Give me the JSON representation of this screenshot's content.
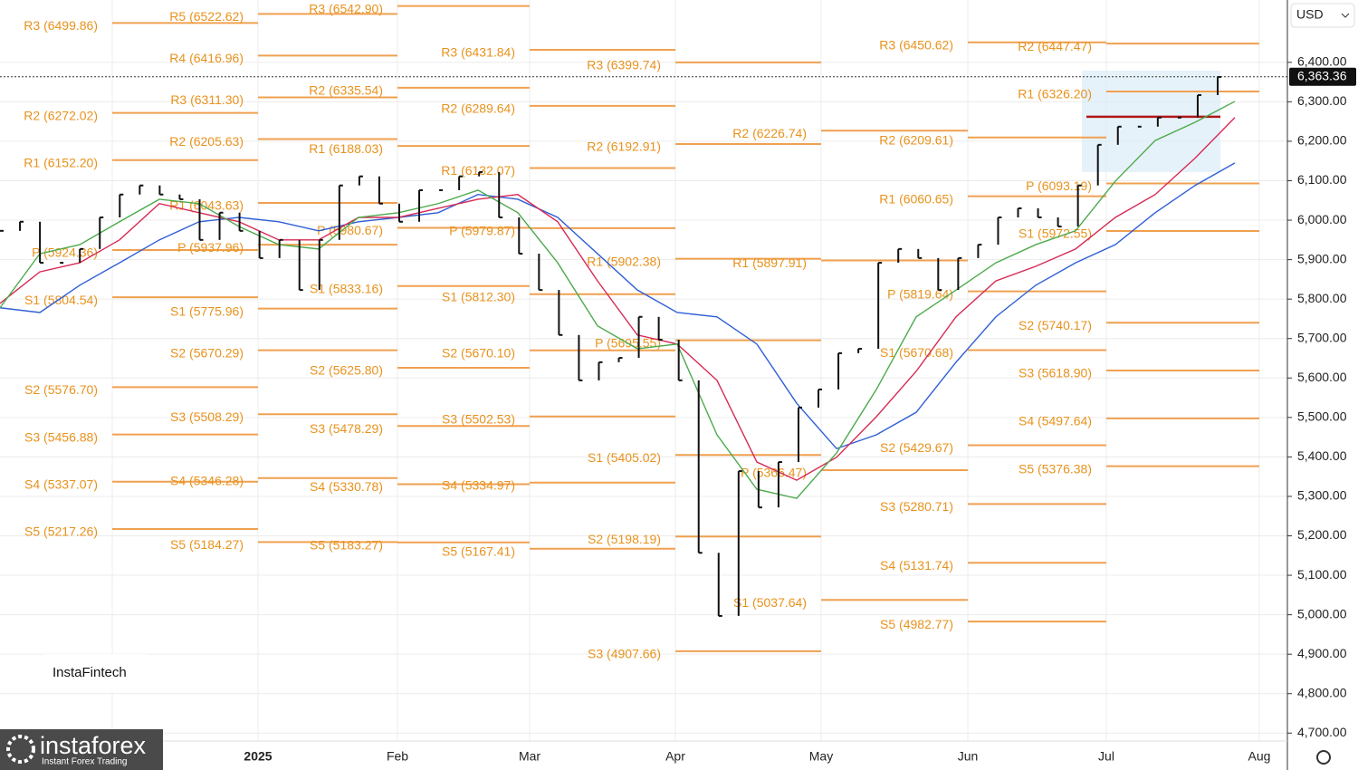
{
  "chart_data": {
    "type": "price-bars",
    "currency": "USD",
    "last_price": {
      "value": 6363.36,
      "label": "6,363.36"
    },
    "ylim": [
      4680,
      6558
    ],
    "yticks": [
      {
        "value": 4700,
        "label": "4,700.00"
      },
      {
        "value": 4800,
        "label": "4,800.00"
      },
      {
        "value": 4900,
        "label": "4,900.00"
      },
      {
        "value": 5000,
        "label": "5,000.00"
      },
      {
        "value": 5100,
        "label": "5,100.00"
      },
      {
        "value": 5200,
        "label": "5,200.00"
      },
      {
        "value": 5300,
        "label": "5,300.00"
      },
      {
        "value": 5400,
        "label": "5,400.00"
      },
      {
        "value": 5500,
        "label": "5,500.00"
      },
      {
        "value": 5600,
        "label": "5,600.00"
      },
      {
        "value": 5700,
        "label": "5,700.00"
      },
      {
        "value": 5800,
        "label": "5,800.00"
      },
      {
        "value": 5900,
        "label": "5,900.00"
      },
      {
        "value": 6000,
        "label": "6,000.00"
      },
      {
        "value": 6100,
        "label": "6,100.00"
      },
      {
        "value": 6200,
        "label": "6,200.00"
      },
      {
        "value": 6300,
        "label": "6,300.00"
      },
      {
        "value": 6400,
        "label": "6,400.00"
      }
    ],
    "x_labels": [
      "2025",
      "Feb",
      "Mar",
      "Apr",
      "May",
      "Jun",
      "Jul",
      "Aug"
    ],
    "grid": true,
    "price": {
      "color": "#111111",
      "values": [
        5973,
        5996,
        5892,
        5892,
        5927,
        6007,
        6065,
        6088,
        6065,
        6053,
        5950,
        6019,
        5973,
        5904,
        5950,
        5823,
        5950,
        6088,
        6111,
        6042,
        5996,
        6076,
        6076,
        6111,
        6122,
        6007,
        5915,
        5823,
        5709,
        5594,
        5640,
        5651,
        5755,
        5697,
        5594,
        5157,
        4997,
        5364,
        5272,
        5387,
        5525,
        5571,
        5663,
        5674,
        5892,
        5927,
        5904,
        5823,
        5904,
        5938,
        6007,
        6030,
        6007,
        5984,
        6088,
        6191,
        6237,
        6237,
        6260,
        6260,
        6317,
        6363
      ]
    },
    "series": [
      {
        "color": "#2f5fd6",
        "values": [
          5778,
          5766,
          5835,
          5892,
          5950,
          5996,
          6007,
          5996,
          5973,
          5996,
          6007,
          6019,
          6065,
          6053,
          6007,
          5915,
          5823,
          5766,
          5755,
          5686,
          5536,
          5421,
          5456,
          5513,
          5640,
          5755,
          5835,
          5892,
          5938,
          6019,
          6088,
          6145
        ]
      },
      {
        "color": "#d62a55",
        "values": [
          5789,
          5869,
          5892,
          5950,
          6042,
          6019,
          5996,
          5950,
          5950,
          6007,
          6007,
          6030,
          6053,
          6065,
          5996,
          5846,
          5709,
          5686,
          5594,
          5387,
          5341,
          5399,
          5502,
          5617,
          5755,
          5846,
          5883,
          5927,
          6007,
          6065,
          6157,
          6260
        ]
      },
      {
        "color": "#4caa4c",
        "values": [
          5778,
          5915,
          5938,
          5996,
          6053,
          6042,
          5984,
          5938,
          5927,
          6007,
          6019,
          6042,
          6076,
          6019,
          5892,
          5732,
          5674,
          5686,
          5456,
          5318,
          5295,
          5410,
          5571,
          5755,
          5823,
          5892,
          5938,
          5973,
          6099,
          6202,
          6248,
          6301
        ]
      }
    ],
    "poc_level": 6262,
    "pivot_sets": [
      [
        {
          "label": "R3 (6499.86)",
          "value": 6499.86
        },
        {
          "label": "R2 (6272.02)",
          "value": 6272.02
        },
        {
          "label": "R1 (6152.20)",
          "value": 6152.2
        },
        {
          "label": "P (5924.36)",
          "value": 5924.36
        },
        {
          "label": "S1 (5804.54)",
          "value": 5804.54
        },
        {
          "label": "S2 (5576.70)",
          "value": 5576.7
        },
        {
          "label": "S3 (5456.88)",
          "value": 5456.88
        },
        {
          "label": "S4 (5337.07)",
          "value": 5337.07
        },
        {
          "label": "S5 (5217.26)",
          "value": 5217.26
        }
      ],
      [
        {
          "label": "R5 (6522.62)",
          "value": 6522.62
        },
        {
          "label": "R4 (6416.96)",
          "value": 6416.96
        },
        {
          "label": "R3 (6311.30)",
          "value": 6311.3
        },
        {
          "label": "R2 (6205.63)",
          "value": 6205.63
        },
        {
          "label": "R1 (6043.63)",
          "value": 6043.63
        },
        {
          "label": "P (5937.96)",
          "value": 5937.96
        },
        {
          "label": "S1 (5775.96)",
          "value": 5775.96
        },
        {
          "label": "S2 (5670.29)",
          "value": 5670.29
        },
        {
          "label": "S3 (5508.29)",
          "value": 5508.29
        },
        {
          "label": "S4 (5346.28)",
          "value": 5346.28
        },
        {
          "label": "S5 (5184.27)",
          "value": 5184.27
        }
      ],
      [
        {
          "label": "R3 (6542.90)",
          "value": 6542.9
        },
        {
          "label": "R2 (6335.54)",
          "value": 6335.54
        },
        {
          "label": "R1 (6188.03)",
          "value": 6188.03
        },
        {
          "label": "P (5980.67)",
          "value": 5980.67
        },
        {
          "label": "S1 (5833.16)",
          "value": 5833.16
        },
        {
          "label": "S2 (5625.80)",
          "value": 5625.8
        },
        {
          "label": "S3 (5478.29)",
          "value": 5478.29
        },
        {
          "label": "S4 (5330.78)",
          "value": 5330.78
        },
        {
          "label": "S5 (5183.27)",
          "value": 5183.27
        }
      ],
      [
        {
          "label": "R3 (6431.84)",
          "value": 6431.84
        },
        {
          "label": "R2 (6289.64)",
          "value": 6289.64
        },
        {
          "label": "R1 (6132.07)",
          "value": 6132.07
        },
        {
          "label": "P (5979.87)",
          "value": 5979.87
        },
        {
          "label": "S1 (5812.30)",
          "value": 5812.3
        },
        {
          "label": "S2 (5670.10)",
          "value": 5670.1
        },
        {
          "label": "S3 (5502.53)",
          "value": 5502.53
        },
        {
          "label": "S4 (5334.97)",
          "value": 5334.97
        },
        {
          "label": "S5 (5167.41)",
          "value": 5167.41
        }
      ],
      [
        {
          "label": "R3 (6399.74)",
          "value": 6399.74
        },
        {
          "label": "R2 (6192.91)",
          "value": 6192.91
        },
        {
          "label": "R1 (5902.38)",
          "value": 5902.38
        },
        {
          "label": "P (5695.55)",
          "value": 5695.55
        },
        {
          "label": "S1 (5405.02)",
          "value": 5405.02
        },
        {
          "label": "S2 (5198.19)",
          "value": 5198.19
        },
        {
          "label": "S3 (4907.66)",
          "value": 4907.66
        }
      ],
      [
        {
          "label": "R2 (6226.74)",
          "value": 6226.74
        },
        {
          "label": "R1 (5897.91)",
          "value": 5897.91
        },
        {
          "label": "P (5366.47)",
          "value": 5366.47
        },
        {
          "label": "S1 (5037.64)",
          "value": 5037.64
        }
      ],
      [
        {
          "label": "R3 (6450.62)",
          "value": 6450.62
        },
        {
          "label": "R2 (6209.61)",
          "value": 6209.61
        },
        {
          "label": "R1 (6060.65)",
          "value": 6060.65
        },
        {
          "label": "P (5819.64)",
          "value": 5819.64
        },
        {
          "label": "S1 (5670.68)",
          "value": 5670.68
        },
        {
          "label": "S2 (5429.67)",
          "value": 5429.67
        },
        {
          "label": "S3 (5280.71)",
          "value": 5280.71
        },
        {
          "label": "S4 (5131.74)",
          "value": 5131.74
        },
        {
          "label": "S5 (4982.77)",
          "value": 4982.77
        }
      ],
      [
        {
          "label": "R2 (6447.47)",
          "value": 6447.47
        },
        {
          "label": "R1 (6326.20)",
          "value": 6326.2
        },
        {
          "label": "P (6093.19)",
          "value": 6093.19
        },
        {
          "label": "S1 (5972.55)",
          "value": 5972.55
        },
        {
          "label": "S2 (5740.17)",
          "value": 5740.17
        },
        {
          "label": "S3 (5618.90)",
          "value": 5618.9
        },
        {
          "label": "S4 (5497.64)",
          "value": 5497.64
        },
        {
          "label": "S5 (5376.38)",
          "value": 5376.38
        }
      ]
    ]
  },
  "branding": {
    "watermark": "InstaFintech",
    "logo": "instaforex",
    "tagline": "Instant Forex Trading"
  }
}
